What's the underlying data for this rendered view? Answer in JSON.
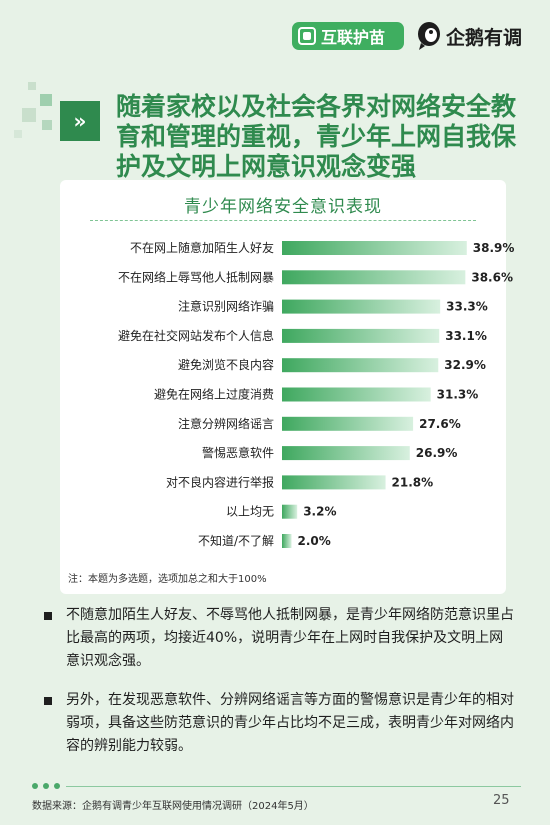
{
  "header": {
    "brand_left": "互联护苗",
    "brand_right": "企鹅有调"
  },
  "title": {
    "icon": "double-chevron-right-icon",
    "lines": [
      "随着家校以及社会各界对网络安全教",
      "育和管理的重视，青少年上网自我保",
      "护及文明上网意识观念变强"
    ]
  },
  "chart_data": {
    "type": "bar",
    "orientation": "horizontal",
    "title": "青少年网络安全意识表现",
    "categories": [
      "不在网上随意加陌生人好友",
      "不在网络上辱骂他人抵制网暴",
      "注意识别网络诈骗",
      "避免在社交网站发布个人信息",
      "避免浏览不良内容",
      "避免在网络上过度消费",
      "注意分辨网络谣言",
      "警惕恶意软件",
      "对不良内容进行举报",
      "以上均无",
      "不知道/不了解"
    ],
    "values": [
      38.9,
      38.6,
      33.3,
      33.1,
      32.9,
      31.3,
      27.6,
      26.9,
      21.8,
      3.2,
      2.0
    ],
    "value_labels": [
      "38.9%",
      "38.6%",
      "33.3%",
      "33.1%",
      "32.9%",
      "31.3%",
      "27.6%",
      "26.9%",
      "21.8%",
      "3.2%",
      "2.0%"
    ],
    "unit": "%",
    "xlim": [
      0,
      40
    ],
    "grid": false,
    "bar_color_start": "#3fa85f",
    "bar_color_end": "#d8f0df"
  },
  "note": "注：本题为多选题，选项加总之和大于100%",
  "bullets": [
    "不随意加陌生人好友、不辱骂他人抵制网暴，是青少年网络防范意识里占比最高的两项，均接近40%，说明青少年在上网时自我保护及文明上网意识观念强。",
    "另外，在发现恶意软件、分辨网络谣言等方面的警惕意识是青少年的相对弱项，具备这些防范意识的青少年占比均不足三成，表明青少年对网络内容的辨别能力较弱。"
  ],
  "footer": {
    "source": "数据来源：企鹅有调青少年互联网使用情况调研（2024年5月）",
    "page_number": "25"
  },
  "colors": {
    "background": "#e7f2e7",
    "accent_green": "#2f8a4e",
    "brand_green": "#3fae60"
  }
}
